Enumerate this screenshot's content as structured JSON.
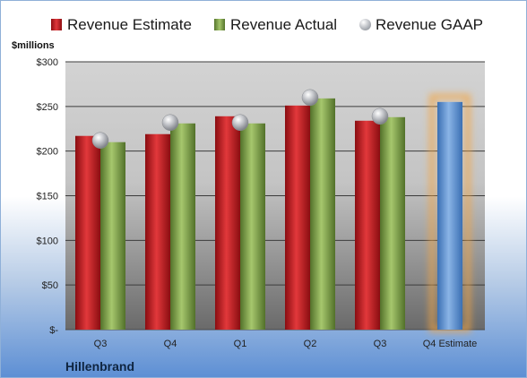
{
  "chart_data": {
    "type": "bar",
    "ylabel": "$millions",
    "ylim": [
      0,
      300
    ],
    "yticks": [
      0,
      50,
      100,
      150,
      200,
      250,
      300
    ],
    "ytick_labels": [
      "$-",
      "$50",
      "$100",
      "$150",
      "$200",
      "$250",
      "$300"
    ],
    "categories": [
      "Q3",
      "Q4",
      "Q1",
      "Q2",
      "Q3",
      "Q4 Estimate"
    ],
    "series": [
      {
        "name": "Revenue Estimate",
        "values": [
          217,
          219,
          239,
          251,
          234,
          null
        ],
        "color": "#c0161b"
      },
      {
        "name": "Revenue Actual",
        "values": [
          210,
          231,
          231,
          259,
          238,
          null
        ],
        "color": "#7fa14a"
      },
      {
        "name": "Revenue GAAP",
        "values": [
          212,
          232,
          232,
          260,
          239,
          null
        ],
        "color": "#b9bcc2",
        "marker": "sphere"
      },
      {
        "name": "Q4 Estimate",
        "values": [
          null,
          null,
          null,
          null,
          null,
          255
        ],
        "color": "#5b8fd0"
      }
    ],
    "highlight": {
      "category_index": 5,
      "glow_color": "#f4a640"
    },
    "grid": true,
    "legend_position": "top"
  },
  "company": "Hillenbrand"
}
